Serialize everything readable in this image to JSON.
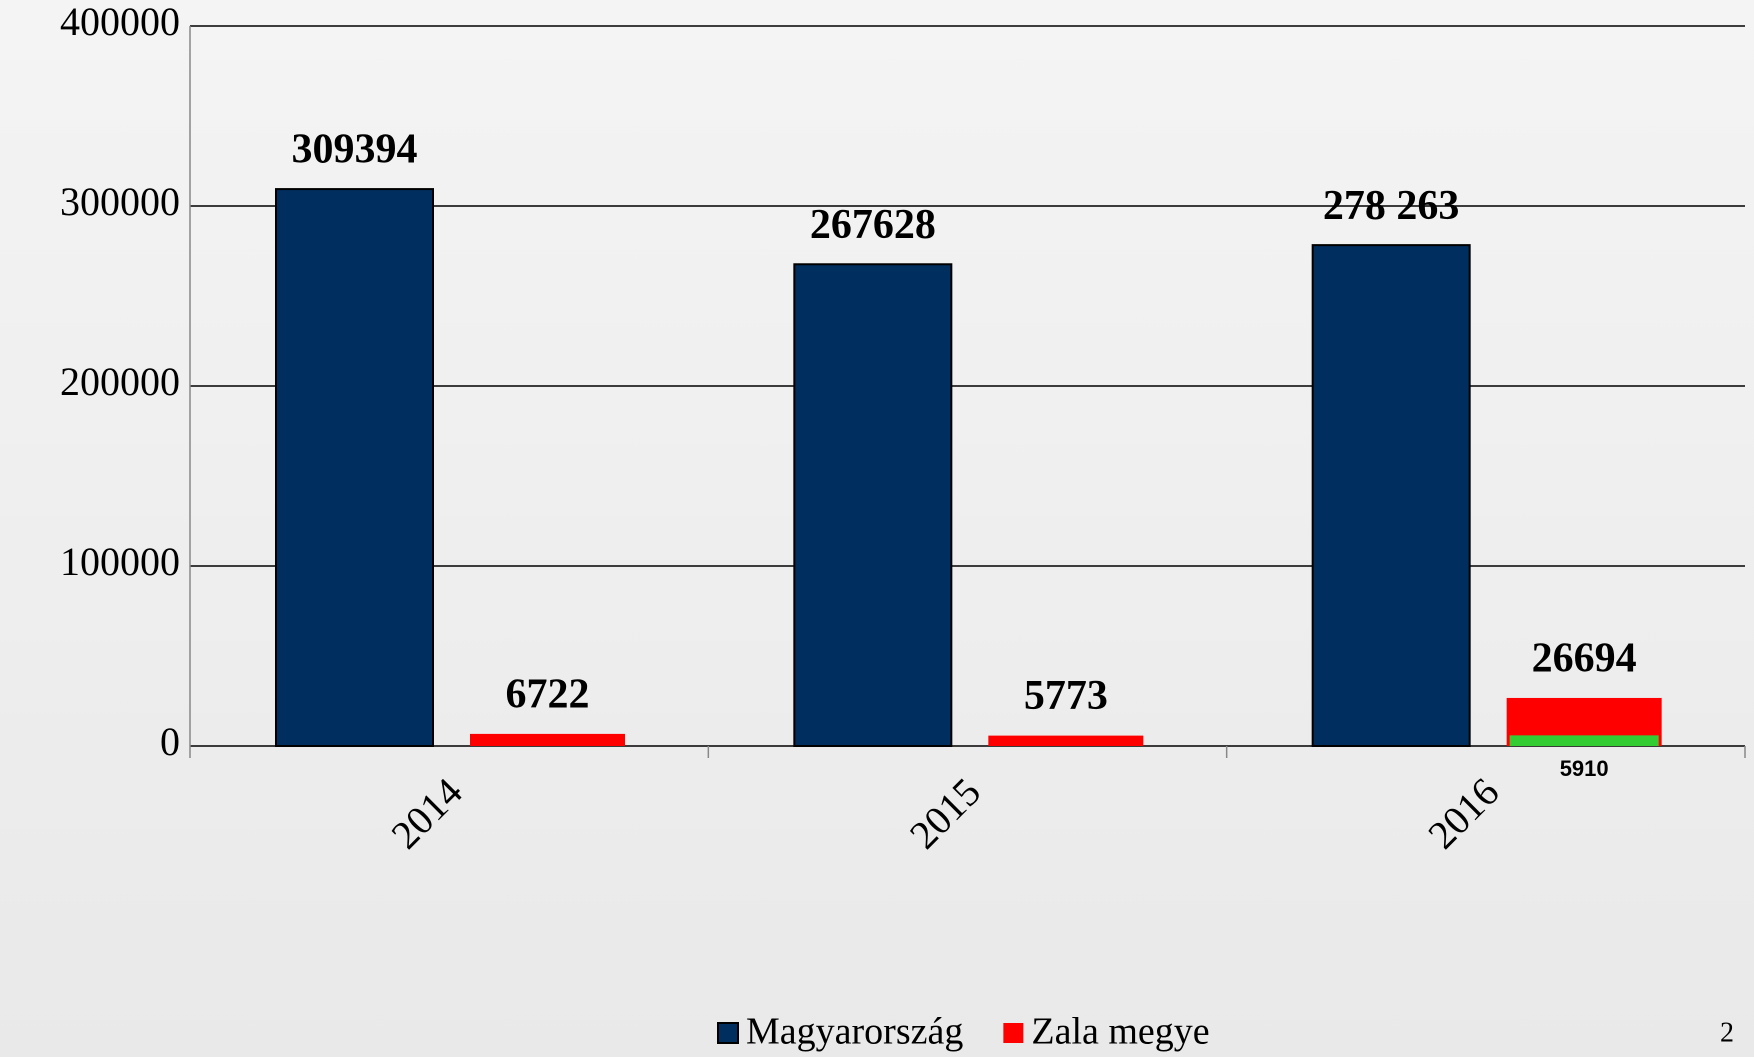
{
  "chart_data": {
    "type": "bar",
    "categories": [
      "2014",
      "2015",
      "2016"
    ],
    "series": [
      {
        "name": "Magyarország",
        "color": "#002e5f",
        "values": [
          309394,
          267628,
          278263
        ],
        "value_labels": [
          "309394",
          "267628",
          "278 263"
        ]
      },
      {
        "name": "Zala megye",
        "color": "#ff0000",
        "values": [
          6722,
          5773,
          26694
        ]
      },
      {
        "color": "#33cc33",
        "values": [
          null,
          null,
          5910
        ]
      }
    ],
    "ylim": [
      0,
      400000
    ],
    "yticks": [
      0,
      100000,
      200000,
      300000,
      400000
    ],
    "grid": true,
    "legend": "bottom"
  },
  "page_number": "2"
}
